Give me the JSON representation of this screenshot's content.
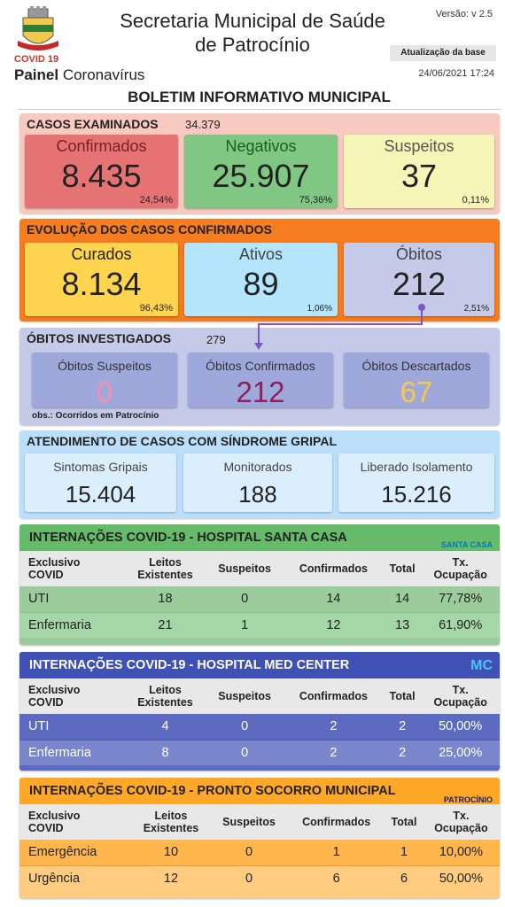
{
  "header": {
    "covid_label": "COVID 19",
    "painel_bold": "Painel",
    "painel_text": "Coronavírus",
    "title_line1": "Secretaria Municipal de Saúde",
    "title_line2": "de Patrocínio",
    "versao": "Versão: v 2.5",
    "atualizacao_label": "Atualização da base",
    "data_atualizacao": "24/06/2021 17:24"
  },
  "boletim_title": "BOLETIM INFORMATIVO MUNICIPAL",
  "casos_examinados": {
    "title": "CASOS EXAMINADOS",
    "total": "34.379",
    "confirmados": {
      "label": "Confirmados",
      "value": "8.435",
      "pct": "24,54%"
    },
    "negativos": {
      "label": "Negativos",
      "value": "25.907",
      "pct": "75,36%"
    },
    "suspeitos": {
      "label": "Suspeitos",
      "value": "37",
      "pct": "0,11%"
    }
  },
  "evolucao": {
    "title": "EVOLUÇÃO DOS CASOS CONFIRMADOS",
    "curados": {
      "label": "Curados",
      "value": "8.134",
      "pct": "96,43%"
    },
    "ativos": {
      "label": "Ativos",
      "value": "89",
      "pct": "1,06%"
    },
    "obitos": {
      "label": "Óbitos",
      "value": "212",
      "pct": "2,51%"
    }
  },
  "obitos_investigados": {
    "title": "ÓBITOS INVESTIGADOS",
    "total": "279",
    "suspeitos": {
      "label": "Óbitos Suspeitos",
      "value": "0"
    },
    "confirmados": {
      "label": "Óbitos Confirmados",
      "value": "212"
    },
    "descartados": {
      "label": "Óbitos Descartados",
      "value": "67"
    },
    "obs": "obs.: Ocorridos em Patrocínio"
  },
  "sindrome_gripal": {
    "title": "ATENDIMENTO DE CASOS COM SÍNDROME GRIPAL",
    "sintomas": {
      "label": "Sintomas Gripais",
      "value": "15.404"
    },
    "monitorados": {
      "label": "Monitorados",
      "value": "188"
    },
    "liberado": {
      "label": "Liberado Isolamento",
      "value": "15.216"
    }
  },
  "table_headers": {
    "col1_a": "Exclusivo",
    "col1_b": "COVID",
    "col2_a": "Leitos",
    "col2_b": "Existentes",
    "col3": "Suspeitos",
    "col4": "Confirmados",
    "col5": "Total",
    "col6_a": "Tx.",
    "col6_b": "Ocupação"
  },
  "santa_casa": {
    "title": "INTERNAÇÕES COVID-19 - HOSPITAL SANTA CASA",
    "logo_text": "SANTA CASA",
    "rows": [
      {
        "tipo": "UTI",
        "leitos": "18",
        "suspeitos": "0",
        "confirmados": "14",
        "total": "14",
        "tx": "77,78%"
      },
      {
        "tipo": "Enfermaria",
        "leitos": "21",
        "suspeitos": "1",
        "confirmados": "12",
        "total": "13",
        "tx": "61,90%"
      }
    ]
  },
  "med_center": {
    "title": "INTERNAÇÕES COVID-19 - HOSPITAL MED CENTER",
    "logo_text": "MC",
    "rows": [
      {
        "tipo": "UTI",
        "leitos": "4",
        "suspeitos": "0",
        "confirmados": "2",
        "total": "2",
        "tx": "50,00%"
      },
      {
        "tipo": "Enfermaria",
        "leitos": "8",
        "suspeitos": "0",
        "confirmados": "2",
        "total": "2",
        "tx": "25,00%"
      }
    ]
  },
  "pronto_socorro": {
    "title": "INTERNAÇÕES COVID-19 - PRONTO SOCORRO MUNICIPAL",
    "logo_text": "PATROCÍNIO",
    "rows": [
      {
        "tipo": "Emergência",
        "leitos": "10",
        "suspeitos": "0",
        "confirmados": "1",
        "total": "1",
        "tx": "10,00%"
      },
      {
        "tipo": "Urgência",
        "leitos": "12",
        "suspeitos": "0",
        "confirmados": "6",
        "total": "6",
        "tx": "50,00%"
      }
    ]
  },
  "colors": {
    "casos_bg": "#f8c9bf",
    "confirmados": "#e57373",
    "negativos": "#81c784",
    "suspeitos": "#f5f5b8",
    "evolucao_bg": "#f57c1f",
    "curados": "#ffd54f",
    "ativos": "#b3e5fc",
    "obitos": "#c5cae9",
    "obitos_inv_bg": "#c5cae9",
    "sindrome_bg": "#bbdefb",
    "santa_casa_head": "#66bb6a",
    "med_center_head": "#3f51b5",
    "pronto_socorro_head": "#ffa726"
  }
}
